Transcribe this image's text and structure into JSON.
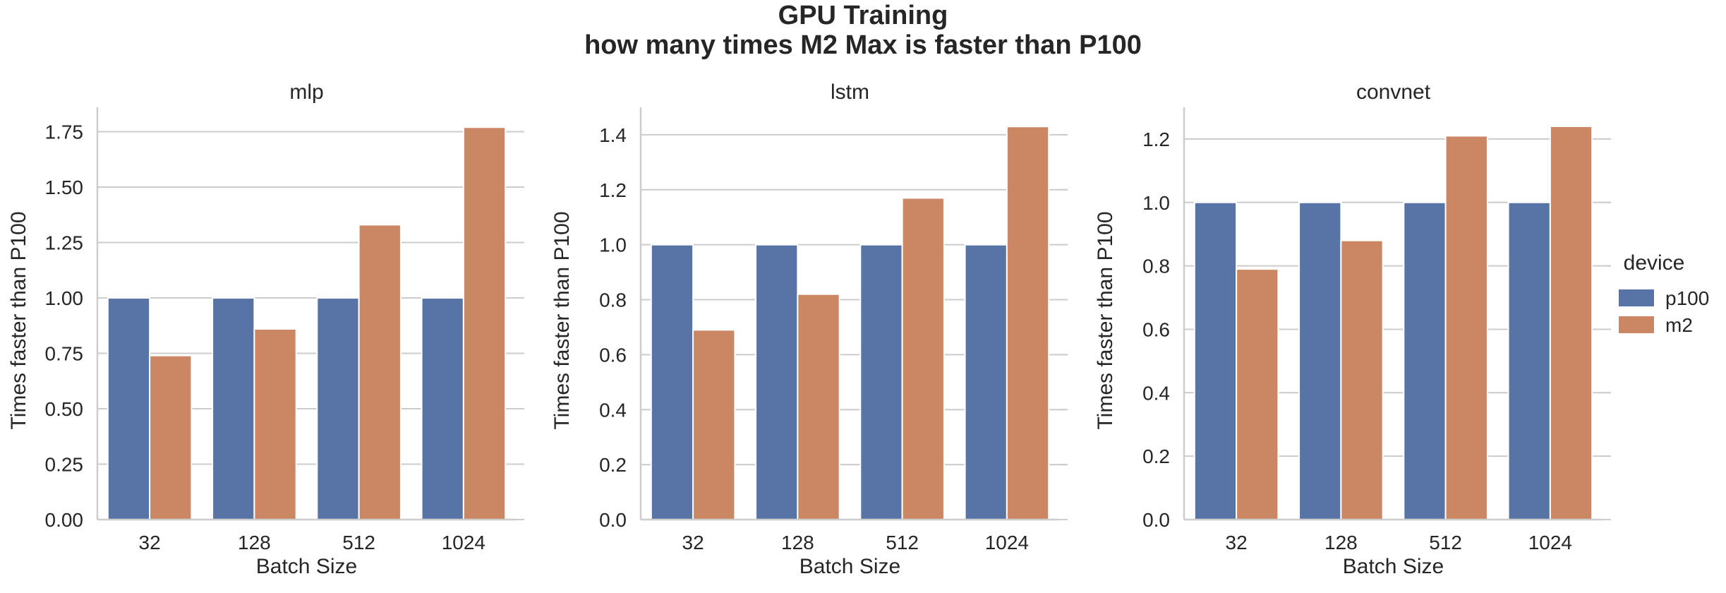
{
  "figure": {
    "title_line1": "GPU Training",
    "title_line2": "how many times M2 Max is faster than P100"
  },
  "legend": {
    "title": "device",
    "entries": [
      {
        "label": "p100",
        "color": "#5874a6"
      },
      {
        "label": "m2",
        "color": "#cb8763"
      }
    ]
  },
  "chart_data": [
    {
      "type": "bar",
      "title": "mlp",
      "xlabel": "Batch Size",
      "ylabel": "Times faster than P100",
      "categories": [
        "32",
        "128",
        "512",
        "1024"
      ],
      "series": [
        {
          "name": "p100",
          "values": [
            1.0,
            1.0,
            1.0,
            1.0
          ]
        },
        {
          "name": "m2",
          "values": [
            0.74,
            0.86,
            1.33,
            1.77
          ]
        }
      ],
      "ylim": [
        0,
        1.86
      ],
      "yticks": [
        0.0,
        0.25,
        0.5,
        0.75,
        1.0,
        1.25,
        1.5,
        1.75
      ],
      "ytick_labels": [
        "0.00",
        "0.25",
        "0.50",
        "0.75",
        "1.00",
        "1.25",
        "1.50",
        "1.75"
      ],
      "grid": "horizontal"
    },
    {
      "type": "bar",
      "title": "lstm",
      "xlabel": "Batch Size",
      "ylabel": "Times faster than P100",
      "categories": [
        "32",
        "128",
        "512",
        "1024"
      ],
      "series": [
        {
          "name": "p100",
          "values": [
            1.0,
            1.0,
            1.0,
            1.0
          ]
        },
        {
          "name": "m2",
          "values": [
            0.69,
            0.82,
            1.17,
            1.43
          ]
        }
      ],
      "ylim": [
        0,
        1.5
      ],
      "yticks": [
        0.0,
        0.2,
        0.4,
        0.6,
        0.8,
        1.0,
        1.2,
        1.4
      ],
      "ytick_labels": [
        "0.0",
        "0.2",
        "0.4",
        "0.6",
        "0.8",
        "1.0",
        "1.2",
        "1.4"
      ],
      "grid": "horizontal"
    },
    {
      "type": "bar",
      "title": "convnet",
      "xlabel": "Batch Size",
      "ylabel": "Times faster than P100",
      "categories": [
        "32",
        "128",
        "512",
        "1024"
      ],
      "series": [
        {
          "name": "p100",
          "values": [
            1.0,
            1.0,
            1.0,
            1.0
          ]
        },
        {
          "name": "m2",
          "values": [
            0.79,
            0.88,
            1.21,
            1.24
          ]
        }
      ],
      "ylim": [
        0,
        1.3
      ],
      "yticks": [
        0.0,
        0.2,
        0.4,
        0.6,
        0.8,
        1.0,
        1.2
      ],
      "ytick_labels": [
        "0.0",
        "0.2",
        "0.4",
        "0.6",
        "0.8",
        "1.0",
        "1.2"
      ],
      "grid": "horizontal"
    }
  ]
}
